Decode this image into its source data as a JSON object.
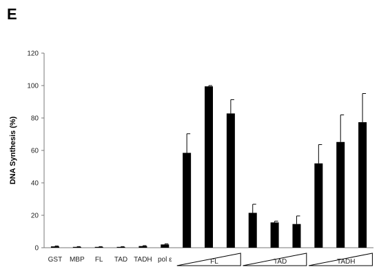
{
  "panel_label": "E",
  "chart_data": {
    "type": "bar",
    "ylabel": "DNA Synthesis (%)",
    "ylim": [
      0,
      120
    ],
    "yticks": [
      0,
      20,
      40,
      60,
      80,
      100,
      120
    ],
    "categories": [
      "GST",
      "MBP",
      "FL",
      "TAD",
      "TADH",
      "pol ε",
      "",
      "",
      "",
      "",
      "",
      "",
      "",
      "",
      ""
    ],
    "values": [
      0.8,
      0.5,
      0.5,
      0.5,
      1.0,
      2.0,
      58.5,
      99.5,
      82.8,
      21.5,
      15.6,
      14.6,
      52.0,
      65.2,
      77.4
    ],
    "errors": [
      0.3,
      0.2,
      0.2,
      0.2,
      0.3,
      0.4,
      11.8,
      0.5,
      8.5,
      5.3,
      0.8,
      5.0,
      11.6,
      16.7,
      17.7
    ],
    "bar_color": "#000000",
    "titration_groups": [
      {
        "label": "FL",
        "bars": [
          6,
          7,
          8
        ]
      },
      {
        "label": "TAD",
        "bars": [
          9,
          10,
          11
        ]
      },
      {
        "label": "TADH",
        "bars": [
          12,
          13,
          14
        ]
      }
    ]
  }
}
